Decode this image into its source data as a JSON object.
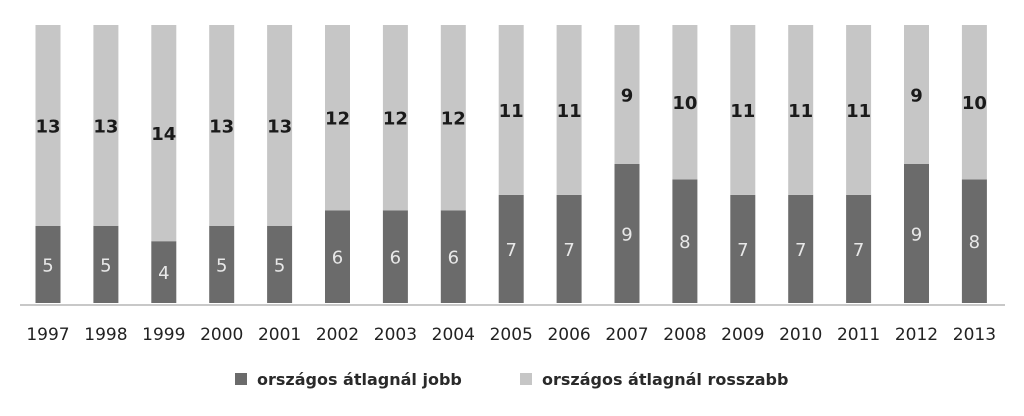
{
  "chart_data": {
    "type": "bar",
    "stacked": true,
    "categories": [
      "1997",
      "1998",
      "1999",
      "2000",
      "2001",
      "2002",
      "2003",
      "2004",
      "2005",
      "2006",
      "2007",
      "2008",
      "2009",
      "2010",
      "2011",
      "2012",
      "2013"
    ],
    "series": [
      {
        "name": "országos átlagnál jobb",
        "color": "#6b6b6b",
        "values": [
          5,
          5,
          4,
          5,
          5,
          6,
          6,
          6,
          7,
          7,
          9,
          8,
          7,
          7,
          7,
          9,
          8
        ]
      },
      {
        "name": "országos átlagnál rosszabb",
        "color": "#c6c6c6",
        "values": [
          13,
          13,
          14,
          13,
          13,
          12,
          12,
          12,
          11,
          11,
          9,
          10,
          11,
          11,
          11,
          9,
          10
        ]
      }
    ],
    "ylim": [
      0,
      18
    ],
    "legend_position": "bottom",
    "grid": false
  }
}
